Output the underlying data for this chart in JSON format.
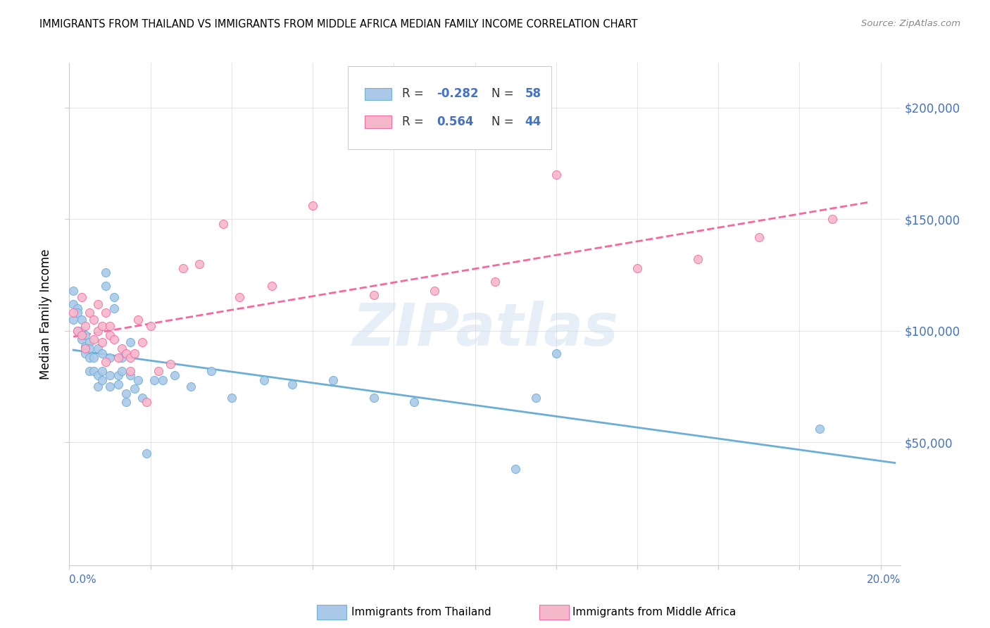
{
  "title": "IMMIGRANTS FROM THAILAND VS IMMIGRANTS FROM MIDDLE AFRICA MEDIAN FAMILY INCOME CORRELATION CHART",
  "source": "Source: ZipAtlas.com",
  "ylabel": "Median Family Income",
  "yticks": [
    50000,
    100000,
    150000,
    200000
  ],
  "ytick_labels": [
    "$50,000",
    "$100,000",
    "$150,000",
    "$200,000"
  ],
  "xlim": [
    0.0,
    0.205
  ],
  "ylim": [
    -5000,
    220000
  ],
  "watermark": "ZIPatlas",
  "r_thailand": "-0.282",
  "n_thailand": "58",
  "r_africa": "0.564",
  "n_africa": "44",
  "color_thailand_fill": "#aac9e8",
  "color_thailand_edge": "#6baed6",
  "color_africa_fill": "#f5b8cb",
  "color_africa_edge": "#f768a1",
  "color_trend_thailand": "#6baed6",
  "color_trend_africa": "#f768a1",
  "color_axis_label": "#4472c4",
  "label_thailand": "Immigrants from Thailand",
  "label_africa": "Immigrants from Middle Africa",
  "thailand_x": [
    0.001,
    0.001,
    0.001,
    0.002,
    0.002,
    0.002,
    0.003,
    0.003,
    0.003,
    0.004,
    0.004,
    0.004,
    0.005,
    0.005,
    0.005,
    0.005,
    0.006,
    0.006,
    0.007,
    0.007,
    0.007,
    0.008,
    0.008,
    0.008,
    0.009,
    0.009,
    0.01,
    0.01,
    0.01,
    0.011,
    0.011,
    0.012,
    0.012,
    0.013,
    0.013,
    0.014,
    0.014,
    0.015,
    0.015,
    0.016,
    0.017,
    0.018,
    0.019,
    0.021,
    0.023,
    0.026,
    0.03,
    0.035,
    0.04,
    0.048,
    0.055,
    0.065,
    0.075,
    0.085,
    0.11,
    0.12,
    0.115,
    0.185
  ],
  "thailand_y": [
    118000,
    112000,
    105000,
    110000,
    100000,
    108000,
    100000,
    96000,
    105000,
    98000,
    90000,
    93000,
    95000,
    88000,
    92000,
    82000,
    88000,
    82000,
    92000,
    80000,
    75000,
    90000,
    78000,
    82000,
    126000,
    120000,
    80000,
    88000,
    75000,
    115000,
    110000,
    80000,
    76000,
    88000,
    82000,
    72000,
    68000,
    95000,
    80000,
    74000,
    78000,
    70000,
    45000,
    78000,
    78000,
    80000,
    75000,
    82000,
    70000,
    78000,
    76000,
    78000,
    70000,
    68000,
    38000,
    90000,
    70000,
    56000
  ],
  "africa_x": [
    0.001,
    0.002,
    0.003,
    0.003,
    0.004,
    0.004,
    0.005,
    0.006,
    0.006,
    0.007,
    0.007,
    0.008,
    0.008,
    0.009,
    0.009,
    0.01,
    0.01,
    0.011,
    0.012,
    0.013,
    0.014,
    0.015,
    0.015,
    0.016,
    0.017,
    0.018,
    0.019,
    0.02,
    0.022,
    0.025,
    0.028,
    0.032,
    0.038,
    0.042,
    0.05,
    0.06,
    0.075,
    0.09,
    0.105,
    0.12,
    0.14,
    0.155,
    0.17,
    0.188
  ],
  "africa_y": [
    108000,
    100000,
    115000,
    98000,
    102000,
    92000,
    108000,
    105000,
    96000,
    112000,
    100000,
    102000,
    95000,
    108000,
    86000,
    98000,
    102000,
    96000,
    88000,
    92000,
    90000,
    88000,
    82000,
    90000,
    105000,
    95000,
    68000,
    102000,
    82000,
    85000,
    128000,
    130000,
    148000,
    115000,
    120000,
    156000,
    116000,
    118000,
    122000,
    170000,
    128000,
    132000,
    142000,
    150000
  ]
}
